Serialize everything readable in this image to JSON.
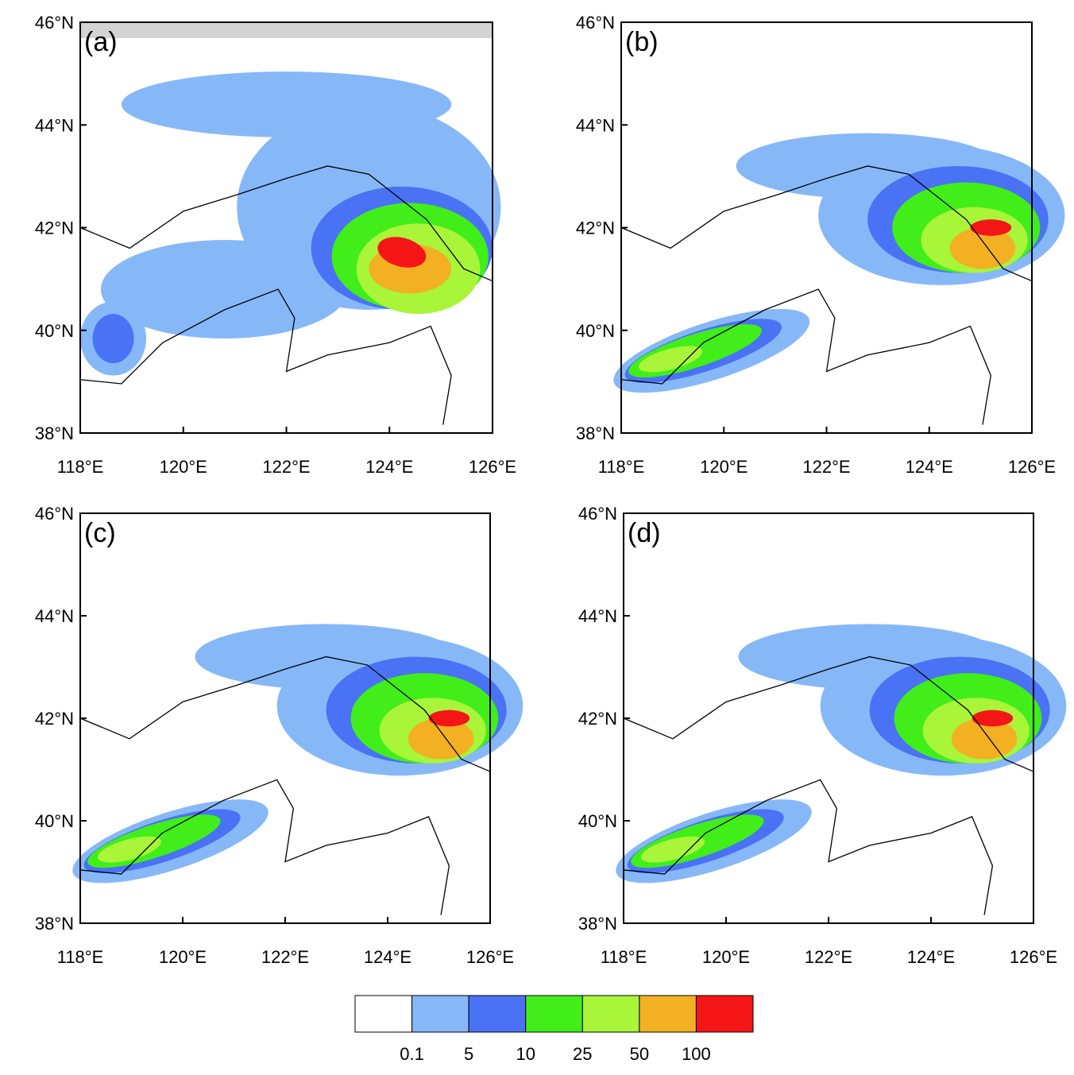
{
  "panels": [
    {
      "label": "(a)"
    },
    {
      "label": "(b)"
    },
    {
      "label": "(c)"
    },
    {
      "label": "(d)"
    }
  ],
  "axes": {
    "xticks": [
      "118°E",
      "120°E",
      "122°E",
      "124°E",
      "126°E"
    ],
    "yticks": [
      "46°N",
      "44°N",
      "42°N",
      "40°N",
      "38°N"
    ]
  },
  "colorbar": {
    "labels": [
      "0.1",
      "5",
      "10",
      "25",
      "50",
      "100"
    ],
    "colors": [
      "#ffffff",
      "#86b8f8",
      "#4a72f5",
      "#41ee1a",
      "#a8f53a",
      "#f3b023",
      "#f41616"
    ]
  }
}
